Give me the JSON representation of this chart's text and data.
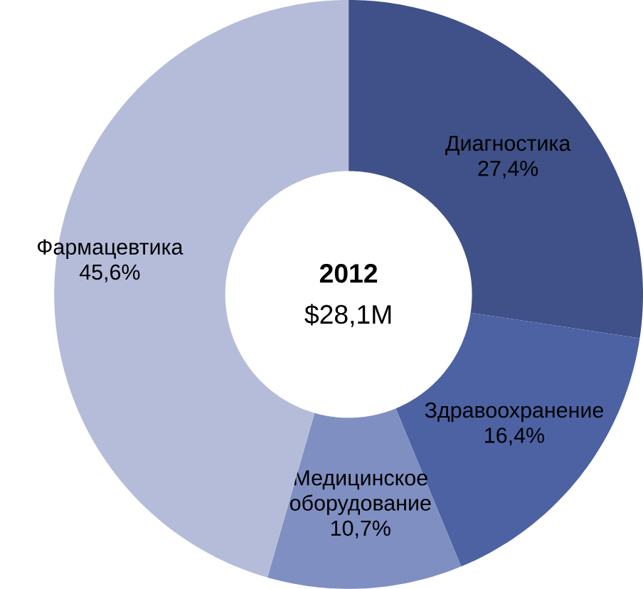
{
  "chart_data": {
    "type": "donut",
    "categories": [
      "Диагностика",
      "Здравоохранение",
      "Медицинское оборудование",
      "Фармацевтика"
    ],
    "values": [
      27.4,
      16.4,
      10.7,
      45.6
    ],
    "value_labels": [
      "27,4%",
      "16,4%",
      "10,7%",
      "45,6%"
    ],
    "colors": [
      "#3f5188",
      "#4c62a3",
      "#7f8fc2",
      "#b5bcd9"
    ],
    "annotations": [
      "2012",
      "$28,1M"
    ]
  }
}
